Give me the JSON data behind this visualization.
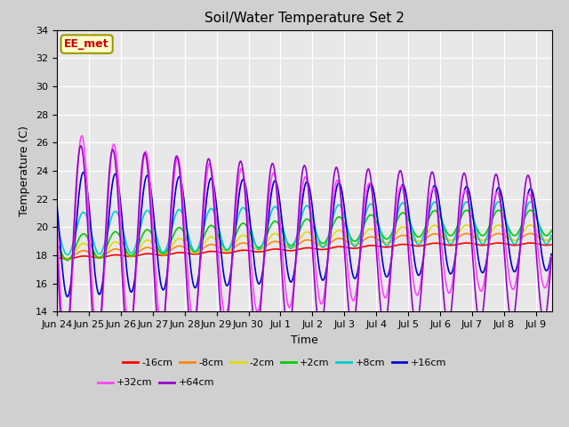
{
  "title": "Soil/Water Temperature Set 2",
  "xlabel": "Time",
  "ylabel": "Temperature (C)",
  "ylim": [
    14,
    34
  ],
  "yticks": [
    14,
    16,
    18,
    20,
    22,
    24,
    26,
    28,
    30,
    32,
    34
  ],
  "plot_bg": "#e8e8e8",
  "fig_bg": "#d0d0d0",
  "annotation_text": "EE_met",
  "annotation_bg": "#ffffcc",
  "annotation_fg": "#cc0000",
  "annotation_border": "#999900",
  "series": {
    "-16cm": {
      "color": "#ff0000",
      "lw": 1.2
    },
    "-8cm": {
      "color": "#ff8800",
      "lw": 1.2
    },
    "-2cm": {
      "color": "#dddd00",
      "lw": 1.2
    },
    "+2cm": {
      "color": "#00cc00",
      "lw": 1.2
    },
    "+8cm": {
      "color": "#00cccc",
      "lw": 1.2
    },
    "+16cm": {
      "color": "#0000cc",
      "lw": 1.2
    },
    "+32cm": {
      "color": "#ff44ff",
      "lw": 1.2
    },
    "+64cm": {
      "color": "#9900cc",
      "lw": 1.2
    }
  },
  "xtick_labels": [
    "Jun 24",
    "Jun 25",
    "Jun 26",
    "Jun 27",
    "Jun 28",
    "Jun 29",
    "Jun 30",
    "Jul 1",
    "Jul 2",
    "Jul 3",
    "Jul 4",
    "Jul 5",
    "Jul 6",
    "Jul 7",
    "Jul 8",
    "Jul 9"
  ]
}
